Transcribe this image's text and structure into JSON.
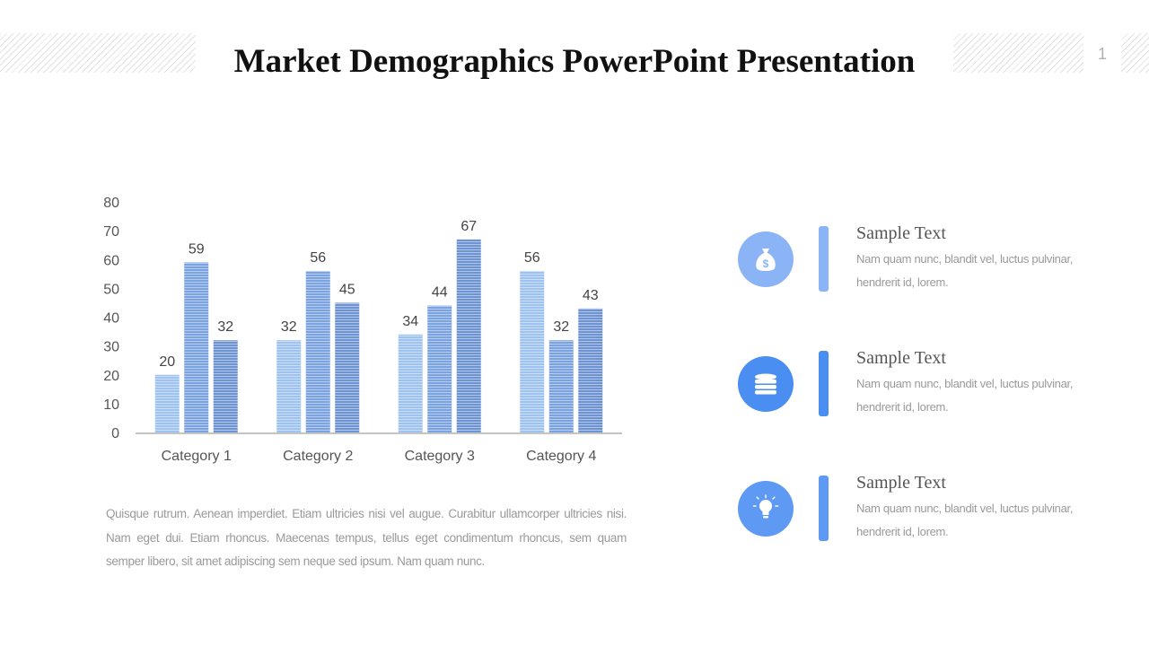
{
  "slide": {
    "title": "Market Demographics PowerPoint Presentation",
    "page_number": "1"
  },
  "chart_data": {
    "type": "bar",
    "categories": [
      "Category 1",
      "Category 2",
      "Category 3",
      "Category 4"
    ],
    "series": [
      {
        "values": [
          20,
          32,
          34,
          56
        ],
        "color": "#9ec3f0"
      },
      {
        "values": [
          59,
          56,
          44,
          32
        ],
        "color": "#7aa3e0"
      },
      {
        "values": [
          32,
          45,
          67,
          43
        ],
        "color": "#6d93d1"
      }
    ],
    "ylim": [
      0,
      80
    ],
    "yticks": [
      0,
      10,
      20,
      30,
      40,
      50,
      60,
      70,
      80
    ],
    "grid": false,
    "data_labels": true
  },
  "description": "Quisque rutrum. Aenean imperdiet. Etiam ultricies nisi vel augue. Curabitur ullamcorper ultricies nisi. Nam eget dui. Etiam rhoncus. Maecenas tempus, tellus eget condimentum rhoncus, sem quam semper libero, sit amet adipiscing sem neque sed ipsum. Nam quam nunc.",
  "features": [
    {
      "title": "Sample Text",
      "text": "Nam quam nunc, blandit vel, luctus pulvinar, hendrerit id, lorem.",
      "icon": "money-bag-icon",
      "circle_color": "#8ab4f5",
      "bar_color": "#8ab4f5"
    },
    {
      "title": "Sample Text",
      "text": "Nam quam nunc, blandit vel, luctus pulvinar, hendrerit id, lorem.",
      "icon": "coin-stack-icon",
      "circle_color": "#4a8ef2",
      "bar_color": "#4a8ef2"
    },
    {
      "title": "Sample Text",
      "text": "Nam quam nunc, blandit vel, luctus pulvinar, hendrerit id, lorem.",
      "icon": "lightbulb-icon",
      "circle_color": "#5e9af4",
      "bar_color": "#5e9af4"
    }
  ]
}
